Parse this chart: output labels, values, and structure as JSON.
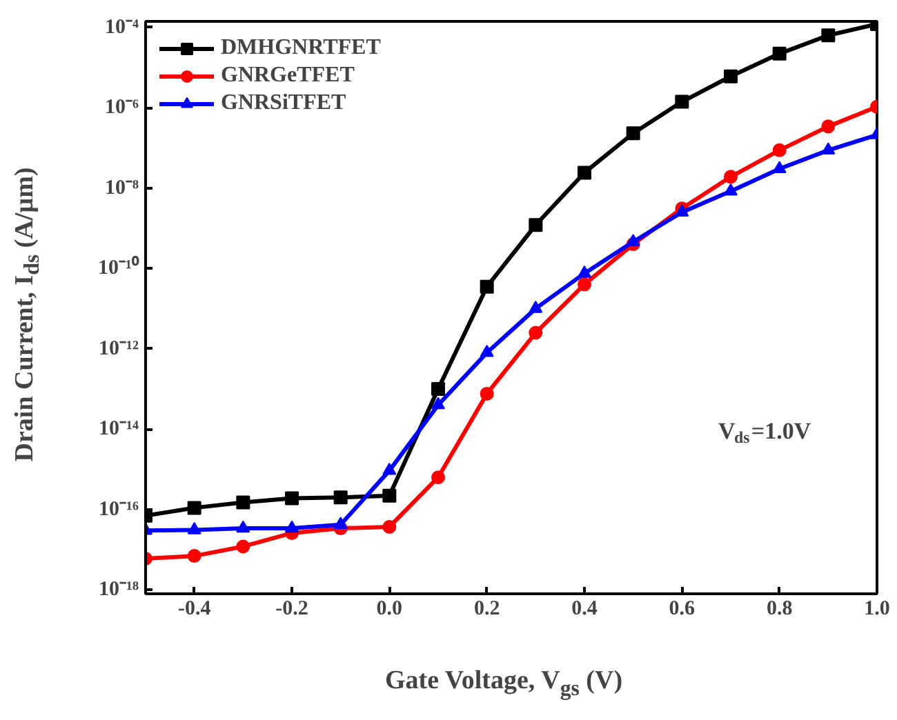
{
  "chart_data": {
    "type": "line",
    "xlabel": "Gate Voltage, V$_{gs}$ (V)",
    "ylabel": "Drain Current, I$_{ds}$ (A/µm)",
    "x": [
      -0.5,
      -0.4,
      -0.3,
      -0.2,
      -0.1,
      0.0,
      0.1,
      0.2,
      0.3,
      0.4,
      0.5,
      0.6,
      0.7,
      0.8,
      0.9,
      1.0
    ],
    "series": [
      {
        "name": "DMHGNRTFET",
        "color": "#000000",
        "marker": "square",
        "values": [
          7e-17,
          1.1e-16,
          1.5e-16,
          1.9e-16,
          2e-16,
          2.2e-16,
          1e-13,
          3.5e-11,
          1.2e-09,
          2.4e-08,
          2.3e-07,
          1.4e-06,
          6e-06,
          2.2e-05,
          6.3e-05,
          0.00012
        ]
      },
      {
        "name": "GNRGeTFET",
        "color": "#ff0000",
        "marker": "circle",
        "values": [
          6e-18,
          7e-18,
          1.2e-17,
          2.6e-17,
          3.4e-17,
          3.7e-17,
          6.3e-16,
          7.6e-14,
          2.5e-12,
          4e-11,
          4e-10,
          3.1e-09,
          1.9e-08,
          8.7e-08,
          3.4e-07,
          1.05e-06
        ]
      },
      {
        "name": "GNRSiTFET",
        "color": "#0000ff",
        "marker": "triangle",
        "values": [
          3e-17,
          3.1e-17,
          3.4e-17,
          3.4e-17,
          4.2e-17,
          9.3e-16,
          4e-14,
          8e-13,
          1e-11,
          7.5e-11,
          4.6e-10,
          2.5e-09,
          8.3e-09,
          3e-08,
          8.7e-08,
          2.1e-07
        ]
      }
    ],
    "log": "y",
    "xlim": [
      -0.5,
      1.0
    ],
    "ylim": [
      8e-19,
      0.00014
    ],
    "xticks": [
      {
        "value": -0.4,
        "label": "-0.4"
      },
      {
        "value": -0.2,
        "label": "-0.2"
      },
      {
        "value": 0.0,
        "label": "0.0"
      },
      {
        "value": 0.2,
        "label": "0.2"
      },
      {
        "value": 0.4,
        "label": "0.4"
      },
      {
        "value": 0.6,
        "label": "0.6"
      },
      {
        "value": 0.8,
        "label": "0.8"
      },
      {
        "value": 1.0,
        "label": "1.0"
      }
    ],
    "yticks": [
      {
        "value": 1e-18,
        "label": "10⁻¹⁸"
      },
      {
        "value": 1e-16,
        "label": "10⁻¹⁶"
      },
      {
        "value": 1e-14,
        "label": "10⁻¹⁴"
      },
      {
        "value": 1e-12,
        "label": "10⁻¹²"
      },
      {
        "value": 1e-10,
        "label": "10⁻¹⁰"
      },
      {
        "value": 1e-08,
        "label": "10⁻⁸"
      },
      {
        "value": 1e-06,
        "label": "10⁻⁶"
      },
      {
        "value": 0.0001,
        "label": "10⁻⁴"
      }
    ],
    "annotations": [
      "V$_{ds}$=1.0V"
    ],
    "legend": "top left",
    "grid": false,
    "line_style": "solid"
  }
}
